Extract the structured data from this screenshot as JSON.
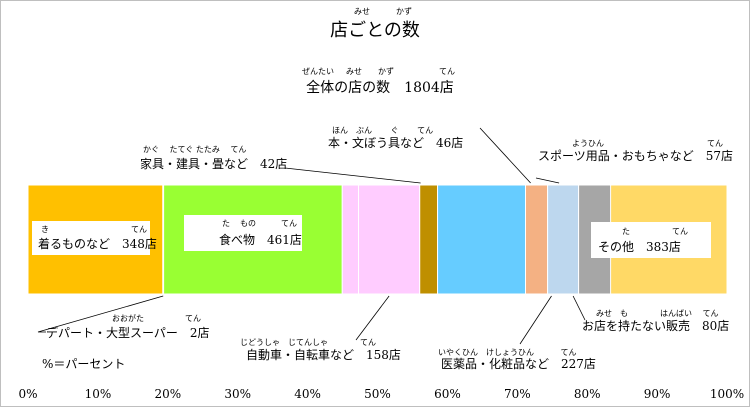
{
  "chart_data": {
    "type": "bar",
    "orientation": "horizontal-stacked",
    "title": "店ごとの数",
    "title_ruby": [
      {
        "text": "みせ",
        "base": "店"
      },
      {
        "text": "かず",
        "base": "数"
      }
    ],
    "subtitle": "全体の店の数　1804店",
    "subtitle_ruby": [
      {
        "text": "ぜんたい",
        "base": "全体"
      },
      {
        "text": "みせ",
        "base": "店"
      },
      {
        "text": "かず",
        "base": "数"
      },
      {
        "text": "てん",
        "base": "店"
      }
    ],
    "unit_note": "%＝パーセント",
    "xlim": [
      0,
      100
    ],
    "x_ticks": [
      "0%",
      "10%",
      "20%",
      "30%",
      "40%",
      "50%",
      "60%",
      "70%",
      "80%",
      "90%",
      "100%"
    ],
    "total": 1804,
    "segments": [
      {
        "label": "着るものなど　348店",
        "ruby": [
          "き",
          "てん"
        ],
        "value": 348,
        "color": "#ffc000"
      },
      {
        "label": "デパート・大型スーパー　2店",
        "ruby": [
          "おおがた",
          "てん"
        ],
        "value": 2,
        "color": "#ffc000"
      },
      {
        "label": "食べ物　461店",
        "ruby": [
          "た",
          "もの",
          "てん"
        ],
        "value": 461,
        "color": "#99ff33"
      },
      {
        "label": "家具・建具・畳など　42店",
        "ruby": [
          "かぐ",
          "たてぐ",
          "たたみ",
          "てん"
        ],
        "value": 42,
        "color": "#ffccff"
      },
      {
        "label": "自動車・自転車など　158店",
        "ruby": [
          "じどうしゃ",
          "じてんしゃ",
          "てん"
        ],
        "value": 158,
        "color": "#ffccff"
      },
      {
        "label": "本・文ぼう具など　46店",
        "ruby": [
          "ほん",
          "ぶん",
          "ぐ",
          "てん"
        ],
        "value": 46,
        "color": "#bf8f00"
      },
      {
        "label": "医薬品・化粧品など　227店",
        "ruby": [
          "いやくひん",
          "けしょうひん",
          "てん"
        ],
        "value": 227,
        "color": "#66ccff"
      },
      {
        "label": "スポーツ用品・おもちゃなど　57店",
        "ruby": [
          "ようひん",
          "てん"
        ],
        "value": 57,
        "color": "#f4b183"
      },
      {
        "label": "お店を持たない販売　80店",
        "ruby": [
          "みせ",
          "も",
          "はんばい",
          "てん"
        ],
        "value": 80,
        "color": "#bdd7ee"
      },
      {
        "label": "その他　383店",
        "ruby": [
          "た",
          "てん"
        ],
        "value": 383,
        "color": "#a6a6a6"
      }
    ],
    "colors": {
      "last": "#ffd966"
    }
  }
}
